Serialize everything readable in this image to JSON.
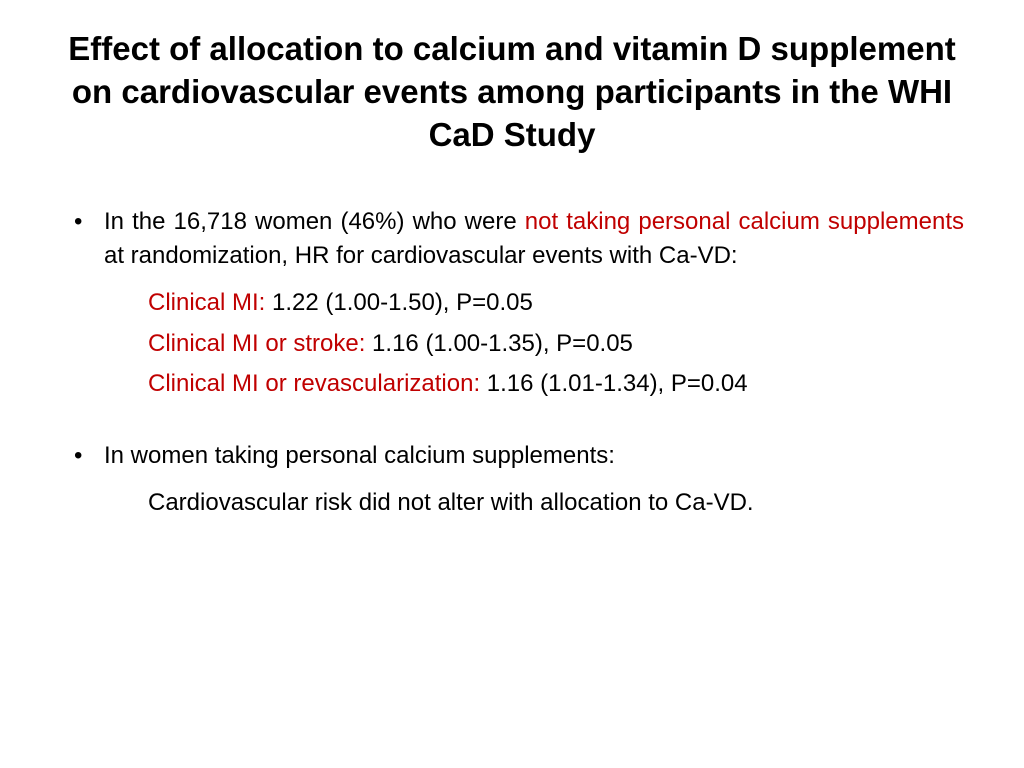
{
  "title": "Effect of allocation to calcium and vitamin D supplement on cardiovascular events among participants in the WHI CaD Study",
  "bullet1": {
    "part1": "In the 16,718 women (46%) who were ",
    "highlight": "not taking personal calcium supplements",
    "part2": " at randomization, HR for cardiovascular events with Ca-VD:",
    "rows": [
      {
        "label": "Clinical MI:",
        "value": " 1.22 (1.00-1.50), P=0.05"
      },
      {
        "label": "Clinical MI or stroke:",
        "value": " 1.16 (1.00-1.35), P=0.05"
      },
      {
        "label": "Clinical MI or revascularization:",
        "value": " 1.16 (1.01-1.34), P=0.04"
      }
    ]
  },
  "bullet2": {
    "lead": "In women taking personal calcium supplements:",
    "sub": "Cardiovascular risk did not alter with allocation to Ca-VD."
  },
  "colors": {
    "highlight": "#c00000",
    "text": "#000000",
    "background": "#ffffff"
  },
  "typography": {
    "title_fontsize": 33,
    "body_fontsize": 24,
    "title_weight": "bold"
  }
}
